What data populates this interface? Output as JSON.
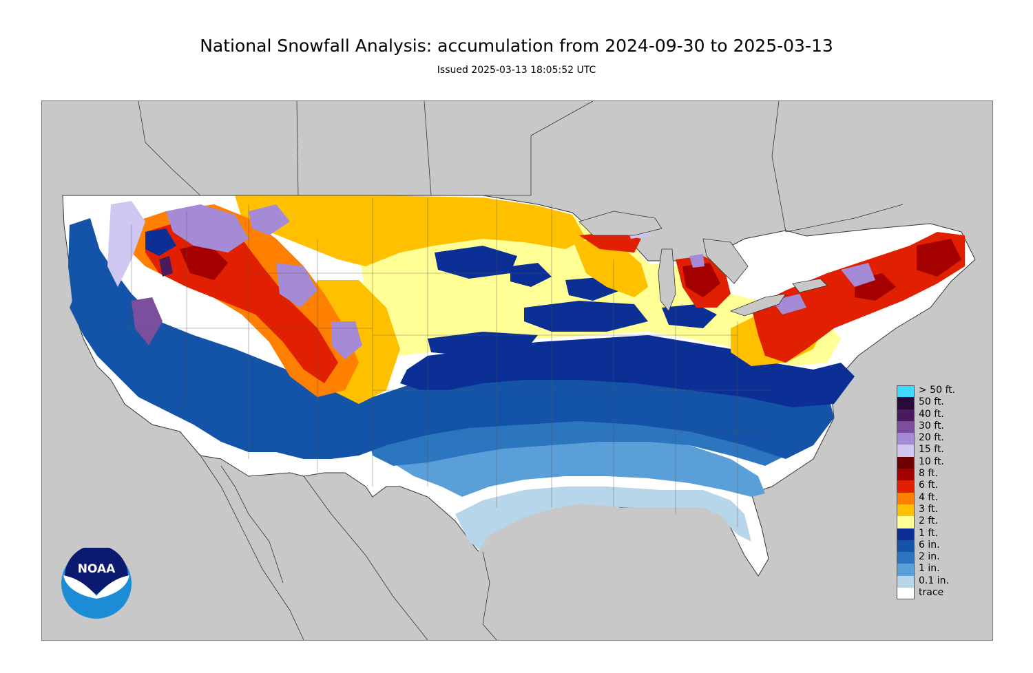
{
  "header": {
    "title": "National Snowfall Analysis: accumulation from 2024-09-30 to 2025-03-13",
    "subtitle": "Issued 2025-03-13 18:05:52 UTC"
  },
  "logo": {
    "text": "NOAA",
    "icon": "noaa-logo-icon"
  },
  "colors": {
    "land_background": "#c8c8c8",
    "boundary_line": "#555555"
  },
  "legend": {
    "items": [
      {
        "label": "> 50 ft.",
        "color": "#40d8ff"
      },
      {
        "label": "50 ft.",
        "color": "#2a0a38"
      },
      {
        "label": "40 ft.",
        "color": "#4b1a5e"
      },
      {
        "label": "30 ft.",
        "color": "#7b4f9e"
      },
      {
        "label": "20 ft.",
        "color": "#a58ad6"
      },
      {
        "label": "15 ft.",
        "color": "#cfc6f2"
      },
      {
        "label": "10 ft.",
        "color": "#6e0000"
      },
      {
        "label": "8 ft.",
        "color": "#a50000"
      },
      {
        "label": "6 ft.",
        "color": "#e02000"
      },
      {
        "label": "4 ft.",
        "color": "#ff7f00"
      },
      {
        "label": "3 ft.",
        "color": "#ffc000"
      },
      {
        "label": "2 ft.",
        "color": "#ffff96"
      },
      {
        "label": "1 ft.",
        "color": "#0c2f96"
      },
      {
        "label": "6 in.",
        "color": "#1454a8"
      },
      {
        "label": "2 in.",
        "color": "#2c76c0"
      },
      {
        "label": "1 in.",
        "color": "#5a9fd8"
      },
      {
        "label": "0.1 in.",
        "color": "#b8d6ea"
      },
      {
        "label": "trace",
        "color": "#ffffff"
      }
    ]
  }
}
